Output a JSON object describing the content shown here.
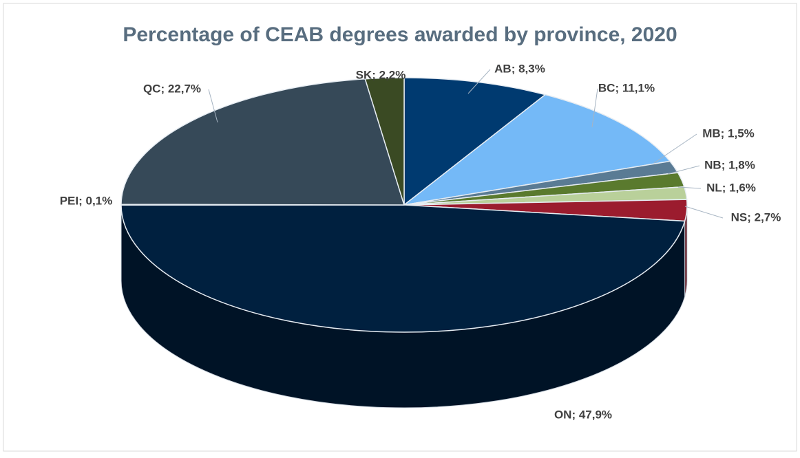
{
  "chart_data": {
    "type": "pie3d",
    "title": "Percentage of CEAB degrees awarded by province, 2020",
    "categories": [
      "AB",
      "BC",
      "MB",
      "NB",
      "NL",
      "NS",
      "ON",
      "PEI",
      "QC",
      "SK"
    ],
    "values": [
      8.3,
      11.1,
      1.5,
      1.8,
      1.6,
      2.7,
      47.9,
      0.1,
      22.7,
      2.2
    ],
    "value_labels": [
      "AB; 8,3%",
      "BC; 11,1%",
      "MB; 1,5%",
      "NB; 1,8%",
      "NL; 1,6%",
      "NS; 2,7%",
      "ON; 47,9%",
      "PEI; 0,1%",
      "QC; 22,7%",
      "SK; 2,2%"
    ],
    "colors": [
      "#003a70",
      "#74b9f7",
      "#5a7b94",
      "#5a7a2e",
      "#b9d09a",
      "#9b1c2e",
      "#00203f",
      "#c9d6e3",
      "#364958",
      "#3a4a23"
    ]
  }
}
